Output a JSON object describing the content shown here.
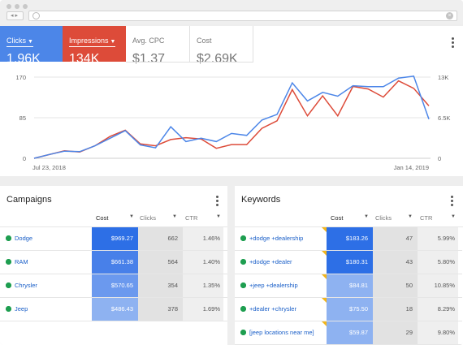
{
  "metrics": {
    "clicks": {
      "label": "Clicks",
      "value": "1.96K"
    },
    "impressions": {
      "label": "Impressions",
      "value": "134K"
    },
    "avg_cpc": {
      "label": "Avg. CPC",
      "value": "$1.37"
    },
    "cost": {
      "label": "Cost",
      "value": "$2.69K"
    }
  },
  "colors": {
    "clicks": "#4c86e8",
    "impressions": "#dd4b39",
    "cost_scale": [
      "#2d6fe6",
      "#4880e9",
      "#6b99ee",
      "#8eb2f1"
    ]
  },
  "chart_data": {
    "type": "line",
    "x_start_label": "Jul 23, 2018",
    "x_end_label": "Jan 14, 2019",
    "y_left_ticks": [
      "170",
      "85",
      "0"
    ],
    "y_right_ticks": [
      "13K",
      "6.5K",
      "0"
    ],
    "ylim_left": [
      0,
      170
    ],
    "ylim_right": [
      0,
      13000
    ],
    "series": [
      {
        "name": "Clicks",
        "axis": "left",
        "values": [
          0,
          8,
          15,
          14,
          26,
          42,
          58,
          28,
          22,
          66,
          35,
          42,
          35,
          52,
          48,
          80,
          92,
          158,
          120,
          138,
          130,
          152,
          150,
          150,
          168,
          172,
          82
        ]
      },
      {
        "name": "Impressions",
        "axis": "right",
        "values": [
          0,
          600,
          1200,
          1000,
          2000,
          3500,
          4500,
          2300,
          2000,
          3000,
          3300,
          3100,
          1600,
          2200,
          2200,
          4800,
          6000,
          11000,
          6800,
          10000,
          6800,
          11500,
          11100,
          9800,
          12400,
          11200,
          8400
        ]
      }
    ]
  },
  "campaigns": {
    "title": "Campaigns",
    "headers": {
      "cost": "Cost",
      "clicks": "Clicks",
      "ctr": "CTR"
    },
    "rows": [
      {
        "name": "Dodge",
        "cost": "$969.27",
        "clicks": "662",
        "ctr": "1.46%",
        "level": 0
      },
      {
        "name": "RAM",
        "cost": "$661.38",
        "clicks": "564",
        "ctr": "1.40%",
        "level": 1
      },
      {
        "name": "Chrysler",
        "cost": "$570.65",
        "clicks": "354",
        "ctr": "1.35%",
        "level": 2
      },
      {
        "name": "Jeep",
        "cost": "$486.43",
        "clicks": "378",
        "ctr": "1.69%",
        "level": 3
      }
    ]
  },
  "keywords": {
    "title": "Keywords",
    "headers": {
      "cost": "Cost",
      "clicks": "Clicks",
      "ctr": "CTR"
    },
    "rows": [
      {
        "name": "+dodge +dealership",
        "cost": "$183.26",
        "clicks": "47",
        "ctr": "5.99%",
        "level": 0
      },
      {
        "name": "+dodge +dealer",
        "cost": "$180.31",
        "clicks": "43",
        "ctr": "5.80%",
        "level": 0
      },
      {
        "name": "+jeep +dealership",
        "cost": "$84.81",
        "clicks": "50",
        "ctr": "10.85%",
        "level": 3
      },
      {
        "name": "+dealer +chrysler",
        "cost": "$75.50",
        "clicks": "18",
        "ctr": "8.29%",
        "level": 3
      },
      {
        "name": "[jeep locations near me]",
        "cost": "$59.87",
        "clicks": "29",
        "ctr": "9.80%",
        "level": 3
      }
    ]
  }
}
